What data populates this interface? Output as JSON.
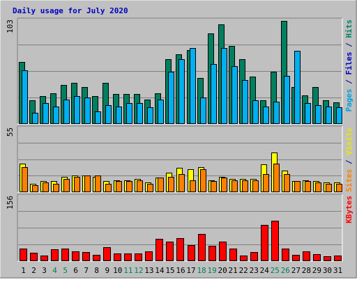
{
  "chart_data": {
    "type": "bar",
    "title": "Daily usage for July 2020",
    "categories": [
      "1",
      "2",
      "3",
      "4",
      "5",
      "6",
      "7",
      "8",
      "9",
      "10",
      "11",
      "12",
      "13",
      "14",
      "15",
      "16",
      "17",
      "18",
      "19",
      "20",
      "21",
      "22",
      "23",
      "24",
      "25",
      "26",
      "27",
      "28",
      "29",
      "30",
      "31"
    ],
    "weekend_days": [
      "4",
      "5",
      "11",
      "12",
      "18",
      "19",
      "25",
      "26"
    ],
    "panels": [
      {
        "name": "hits_pages_files",
        "ymax_label": "103",
        "ylim": [
          0,
          103
        ],
        "side_label": [
          {
            "text": "Pages",
            "color": "#00a0e0"
          },
          {
            "text": " / ",
            "color": "#000080"
          },
          {
            "text": "Files",
            "color": "#0000c0"
          },
          {
            "text": " / ",
            "color": "#000080"
          },
          {
            "text": "Hits",
            "color": "#008060"
          }
        ],
        "series": [
          {
            "name": "Hits",
            "color": "#008060",
            "values": [
              60,
              23,
              27,
              30,
              38,
              40,
              36,
              27,
              40,
              29,
              29,
              29,
              24,
              30,
              63,
              68,
              72,
              45,
              88,
              97,
              76,
              63,
              46,
              23,
              51,
              100,
              36,
              28,
              36,
              23,
              21
            ]
          },
          {
            "name": "Files",
            "color": "#0000c0",
            "values": [
              52,
              11,
              20,
              17,
              24,
              27,
              26,
              12,
              18,
              17,
              20,
              20,
              16,
              24,
              51,
              63,
              74,
              26,
              58,
              74,
              56,
              43,
              23,
              17,
              22,
              47,
              71,
              20,
              18,
              17,
              16
            ]
          },
          {
            "name": "Pages",
            "color": "#00b0f0",
            "values": [
              52,
              11,
              20,
              17,
              24,
              27,
              26,
              12,
              18,
              17,
              20,
              20,
              16,
              24,
              51,
              63,
              74,
              26,
              58,
              74,
              56,
              43,
              23,
              17,
              22,
              47,
              71,
              20,
              18,
              17,
              16
            ]
          }
        ]
      },
      {
        "name": "visits_sites",
        "ymax_label": "55",
        "ylim": [
          0,
          55
        ],
        "side_label": [
          {
            "text": "Sites",
            "color": "#ff8000"
          },
          {
            "text": " / ",
            "color": "#000080"
          },
          {
            "text": "Visits",
            "color": "#e8e800"
          }
        ],
        "series": [
          {
            "name": "Visits",
            "color": "#ffff00",
            "values": [
              24,
              7,
              9,
              9,
              13,
              14,
              14,
              13,
              9,
              10,
              10,
              11,
              8,
              12,
              16,
              20,
              19,
              21,
              10,
              13,
              11,
              11,
              11,
              23,
              33,
              18,
              9,
              10,
              9,
              8,
              8
            ]
          },
          {
            "name": "Sites",
            "color": "#ff8000",
            "values": [
              21,
              6,
              8,
              7,
              11,
              13,
              14,
              14,
              7,
              9,
              9,
              10,
              7,
              12,
              13,
              15,
              10,
              19,
              9,
              12,
              10,
              10,
              10,
              15,
              24,
              15,
              9,
              9,
              8,
              7,
              7
            ]
          }
        ]
      },
      {
        "name": "kbytes",
        "ymax_label": "156",
        "ylim": [
          0,
          156
        ],
        "side_label": [
          {
            "text": "KBytes",
            "color": "#ff0000"
          }
        ],
        "series": [
          {
            "name": "KBytes",
            "color": "#ff0000",
            "values": [
              30,
              19,
              13,
              27,
              30,
              22,
              21,
              14,
              33,
              18,
              18,
              18,
              22,
              52,
              45,
              54,
              38,
              64,
              36,
              46,
              29,
              13,
              21,
              84,
              95,
              29,
              14,
              23,
              16,
              12,
              13
            ]
          }
        ]
      }
    ],
    "grid": true
  }
}
